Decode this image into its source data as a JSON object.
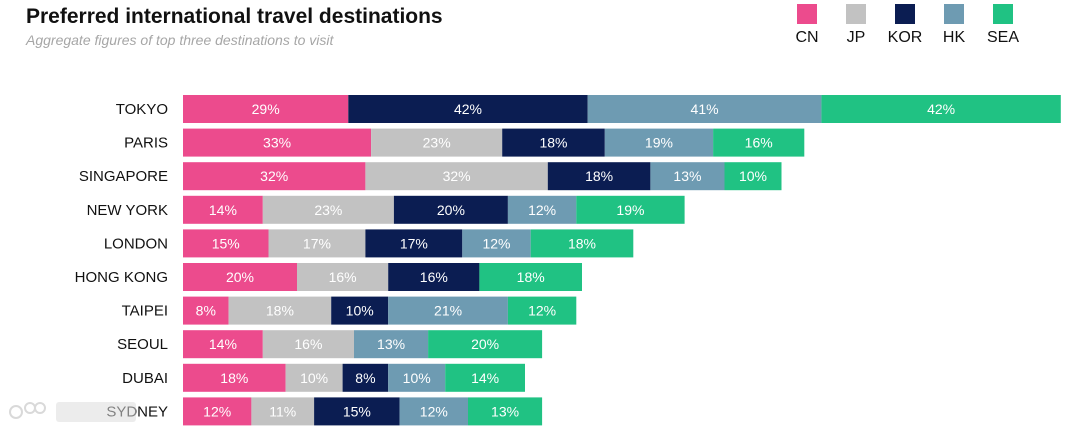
{
  "chart_data": {
    "type": "bar",
    "orientation": "horizontal",
    "stacked": true,
    "title": "Preferred international travel destinations",
    "subtitle": "Aggregate figures of top three destinations to visit",
    "xlabel": "",
    "ylabel": "",
    "grid": false,
    "legend_position": "top-right",
    "value_suffix": "%",
    "categories": [
      "TOKYO",
      "PARIS",
      "SINGAPORE",
      "NEW YORK",
      "LONDON",
      "HONG KONG",
      "TAIPEI",
      "SEOUL",
      "DUBAI",
      "SYDNEY"
    ],
    "series": [
      {
        "name": "CN",
        "color": "#ec4b8d",
        "label_color": "#ffffff",
        "values": [
          29,
          33,
          32,
          14,
          15,
          20,
          8,
          14,
          18,
          12
        ]
      },
      {
        "name": "JP",
        "color": "#c2c2c2",
        "label_color": "#ffffff",
        "values": [
          0,
          23,
          32,
          23,
          17,
          16,
          18,
          16,
          10,
          11
        ]
      },
      {
        "name": "KOR",
        "color": "#0b1d52",
        "label_color": "#ffffff",
        "values": [
          42,
          18,
          18,
          20,
          17,
          16,
          10,
          0,
          8,
          15
        ]
      },
      {
        "name": "HK",
        "color": "#6e9bb2",
        "label_color": "#ffffff",
        "values": [
          41,
          19,
          13,
          12,
          12,
          0,
          21,
          13,
          10,
          12
        ]
      },
      {
        "name": "SEA",
        "color": "#20c283",
        "label_color": "#ffffff",
        "values": [
          42,
          16,
          10,
          19,
          18,
          18,
          12,
          20,
          14,
          13
        ]
      }
    ]
  }
}
